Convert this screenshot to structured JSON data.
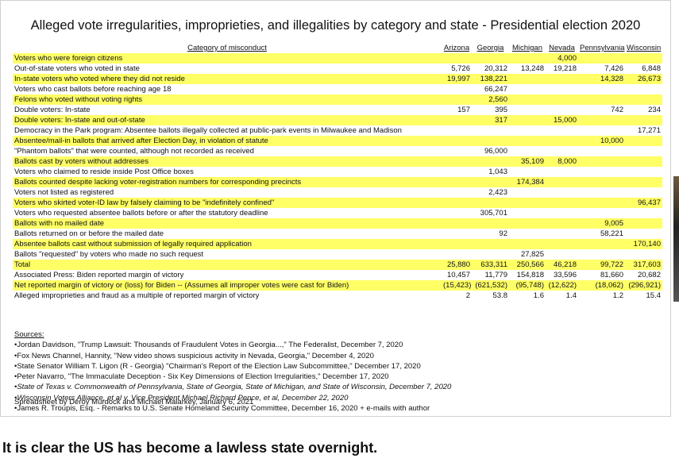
{
  "title": "Alleged vote irregularities, improprieties, and illegalities by category and state - Presidential election 2020",
  "table": {
    "header": [
      "Category of misconduct",
      "Arizona",
      "Georgia",
      "Michigan",
      "Nevada",
      "Pennsylvania",
      "Wisconsin"
    ],
    "rows": [
      [
        "Voters who were foreign citizens",
        null,
        null,
        null,
        "4,000",
        null,
        null
      ],
      [
        "Out-of-state voters who voted in state",
        "5,726",
        "20,312",
        "13,248",
        "19,218",
        "7,426",
        "6,848"
      ],
      [
        "In-state voters who voted where they did not reside",
        "19,997",
        "138,221",
        null,
        null,
        "14,328",
        "26,673"
      ],
      [
        "Voters who cast ballots before reaching age 18",
        null,
        "66,247",
        null,
        null,
        null,
        null
      ],
      [
        "Felons who voted without voting rights",
        null,
        "2,560",
        null,
        null,
        null,
        null
      ],
      [
        "Double voters: In-state",
        "157",
        "395",
        null,
        null,
        "742",
        "234"
      ],
      [
        "Double voters: In-state and out-of-state",
        null,
        "317",
        null,
        "15,000",
        null,
        null
      ],
      [
        "Democracy in the Park program: Absentee ballots illegally collected at public-park events in Milwaukee and Madison",
        null,
        null,
        null,
        null,
        null,
        "17,271"
      ],
      [
        "Absentee/mail-in ballots that arrived after Election Day, in violation of statute",
        null,
        null,
        null,
        null,
        "10,000",
        null
      ],
      [
        "\"Phantom ballots\" that were counted, although not recorded as received",
        null,
        "96,000",
        null,
        null,
        null,
        null
      ],
      [
        "Ballots cast by voters without addresses",
        null,
        null,
        "35,109",
        "8,000",
        null,
        null
      ],
      [
        "Voters who claimed to reside inside Post Office boxes",
        null,
        "1,043",
        null,
        null,
        null,
        null
      ],
      [
        "Ballots counted despite lacking voter-registration numbers for corresponding precincts",
        null,
        null,
        "174,384",
        null,
        null,
        null
      ],
      [
        "Voters not listed as registered",
        null,
        "2,423",
        null,
        null,
        null,
        null
      ],
      [
        "Voters who skirted voter-ID law by falsely claiming to be \"indefinitely confined\"",
        null,
        null,
        null,
        null,
        null,
        "96,437"
      ],
      [
        "Voters who requested absentee ballots before or after the statutory deadline",
        null,
        "305,701",
        null,
        null,
        null,
        null
      ],
      [
        "Ballots with no mailed date",
        null,
        null,
        null,
        null,
        "9,005",
        null
      ],
      [
        "Ballots returned on or before the mailed date",
        null,
        "92",
        null,
        null,
        "58,221",
        null
      ],
      [
        "Absentee ballots cast without submission of legally required application",
        null,
        null,
        null,
        null,
        null,
        "170,140"
      ],
      [
        "Ballots \"requested\" by voters who made no such request",
        null,
        null,
        "27,825",
        null,
        null,
        null
      ],
      [
        "Total",
        "25,880",
        "633,311",
        "250,566",
        "46,218",
        "99,722",
        "317,603"
      ],
      [
        "Associated Press: Biden reported margin of victory",
        "10,457",
        "11,779",
        "154,818",
        "33,596",
        "81,660",
        "20,682"
      ],
      [
        "Net reported margin of victory or (loss) for Biden -- (Assumes all improper votes were cast for Biden)",
        "(15,423)",
        "(621,532)",
        "(95,748)",
        "(12,622)",
        "(18,062)",
        "(296,921)"
      ],
      [
        "Alleged improprieties and fraud as a multiple of reported margin of victory",
        "2",
        "53.8",
        "1.6",
        "1.4",
        "1.2",
        "15.4"
      ]
    ]
  },
  "sources": {
    "heading": "Sources:",
    "items": [
      "•Jordan Davidson, \"Trump Lawsuit: Thousands of Fraudulent Votes in Georgia...,\" The Federalist, December 7, 2020",
      "•Fox News Channel, Hannity, \"New video shows suspicious activity in Nevada, Georgia,\" December 4, 2020",
      "•State Senator William T. Ligon (R - Georgia) \"Chairman's Report of the Election Law Subcommittee,\" December 17, 2020",
      "•Peter Navarro, \"The Immaculate Deception - Six Key Dimensions of Election Irregularities,\" December 17, 2020",
      "•State of Texas v. Commonwealth of Pennsylvania, State of Georgia, State of Michigan, and State of Wisconsin, December 7, 2020",
      "•Wisconsin Voters Alliance, et al v. Vice President Michael Richard Pence, et al, December 22, 2020",
      "•James R. Troupis, Esq. - Remarks to U.S. Senate Homeland Security Committee, December 16, 2020 + e-mails with author"
    ]
  },
  "credit": "Spreadsheet by Deroy Murdock and Michael Malarkey, January 6, 2021",
  "caption": "It is clear the US has become a lawless state overnight."
}
